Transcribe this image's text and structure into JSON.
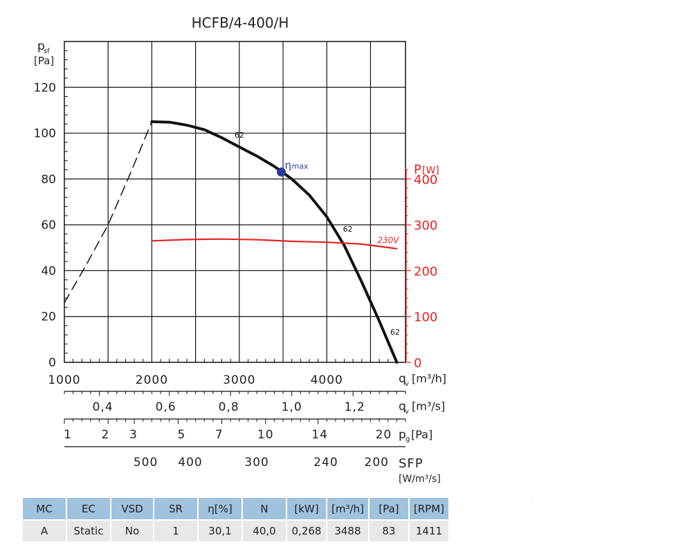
{
  "chart_data": {
    "type": "line",
    "title": "HCFB/4-400/H",
    "y_label_letter": "p",
    "y_label_sub": "sf",
    "y_unit": "[Pa]",
    "y_ticks": [
      "0",
      "20",
      "40",
      "60",
      "80",
      "100",
      "120"
    ],
    "ylim": [
      0,
      140
    ],
    "xlim": [
      1000,
      4900
    ],
    "x_ticks": [
      "1000",
      "2000",
      "3000",
      "4000"
    ],
    "x_label_letter": "q",
    "x_label_sub": "v",
    "x_unit": "[m³/h]",
    "power_axis": {
      "label": "P",
      "unit": "[W]",
      "ticks": [
        "0",
        "100",
        "200",
        "300",
        "400"
      ],
      "range": [
        0,
        400
      ],
      "color": "#e52222"
    },
    "secondary_axes": [
      {
        "label_letter": "q",
        "label_sub": "v",
        "unit": "[m³/s]",
        "ticks": [
          {
            "x": 1440,
            "label": "0,4"
          },
          {
            "x": 2160,
            "label": "0,6"
          },
          {
            "x": 2880,
            "label": "0,8"
          },
          {
            "x": 3600,
            "label": "1,0"
          },
          {
            "x": 4320,
            "label": "1,2"
          }
        ]
      },
      {
        "label_letter": "p",
        "label_sub": "g",
        "unit": "[Pa]",
        "ticks": [
          {
            "x": 1040,
            "label": "1"
          },
          {
            "x": 1470,
            "label": "2"
          },
          {
            "x": 1790,
            "label": "3"
          },
          {
            "x": 2340,
            "label": "5"
          },
          {
            "x": 2770,
            "label": "7"
          },
          {
            "x": 3300,
            "label": "10"
          },
          {
            "x": 3920,
            "label": "14"
          },
          {
            "x": 4650,
            "label": "20"
          }
        ]
      },
      {
        "label": "SFP",
        "unit": "[W/m³/s]",
        "ticks": [
          {
            "x": 1930,
            "label": "500"
          },
          {
            "x": 2440,
            "label": "400"
          },
          {
            "x": 3200,
            "label": "300"
          },
          {
            "x": 3990,
            "label": "240"
          },
          {
            "x": 4570,
            "label": "200"
          }
        ]
      }
    ],
    "series": [
      {
        "name": "",
        "color": "#111111",
        "points": [
          [
            2000,
            105
          ],
          [
            2200,
            104.8
          ],
          [
            2400,
            103.5
          ],
          [
            2600,
            101.5
          ],
          [
            2800,
            98
          ],
          [
            3000,
            94
          ],
          [
            3200,
            90
          ],
          [
            3400,
            85.5
          ],
          [
            3600,
            80
          ],
          [
            3800,
            73
          ],
          [
            4000,
            63.5
          ],
          [
            4200,
            51
          ],
          [
            4400,
            35
          ],
          [
            4600,
            18
          ],
          [
            4800,
            0
          ]
        ],
        "labels": [
          {
            "x": 3000,
            "y": 98,
            "text": "62"
          },
          {
            "x": 4240,
            "y": 57,
            "text": "62"
          },
          {
            "x": 4780,
            "y": 12,
            "text": "62"
          }
        ]
      },
      {
        "name": "",
        "color": "#111111",
        "dashed": true,
        "points": [
          [
            1000,
            26
          ],
          [
            1250,
            42.5
          ],
          [
            1500,
            60
          ],
          [
            1750,
            82
          ],
          [
            2000,
            105
          ]
        ]
      },
      {
        "name": "230V",
        "color": "#e52222",
        "axis": "power",
        "points": [
          [
            2000,
            265
          ],
          [
            2400,
            268
          ],
          [
            2800,
            269
          ],
          [
            3200,
            267.5
          ],
          [
            3600,
            264
          ],
          [
            4000,
            262
          ],
          [
            4400,
            258
          ],
          [
            4800,
            248
          ]
        ]
      }
    ],
    "annotations": [
      {
        "label_symbol": "η",
        "label_sub": "max",
        "x": 3480,
        "y": 83,
        "color": "#2a3a9a"
      }
    ]
  },
  "specs_table": {
    "headers": [
      "MC",
      "EC",
      "VSD",
      "SR",
      "η[%]",
      "N",
      "[kW]",
      "[m³/h]",
      "[Pa]",
      "[RPM]"
    ],
    "row": [
      "A",
      "Static",
      "No",
      "1",
      "30,1",
      "40,0",
      "0,268",
      "3488",
      "83",
      "1411"
    ]
  }
}
